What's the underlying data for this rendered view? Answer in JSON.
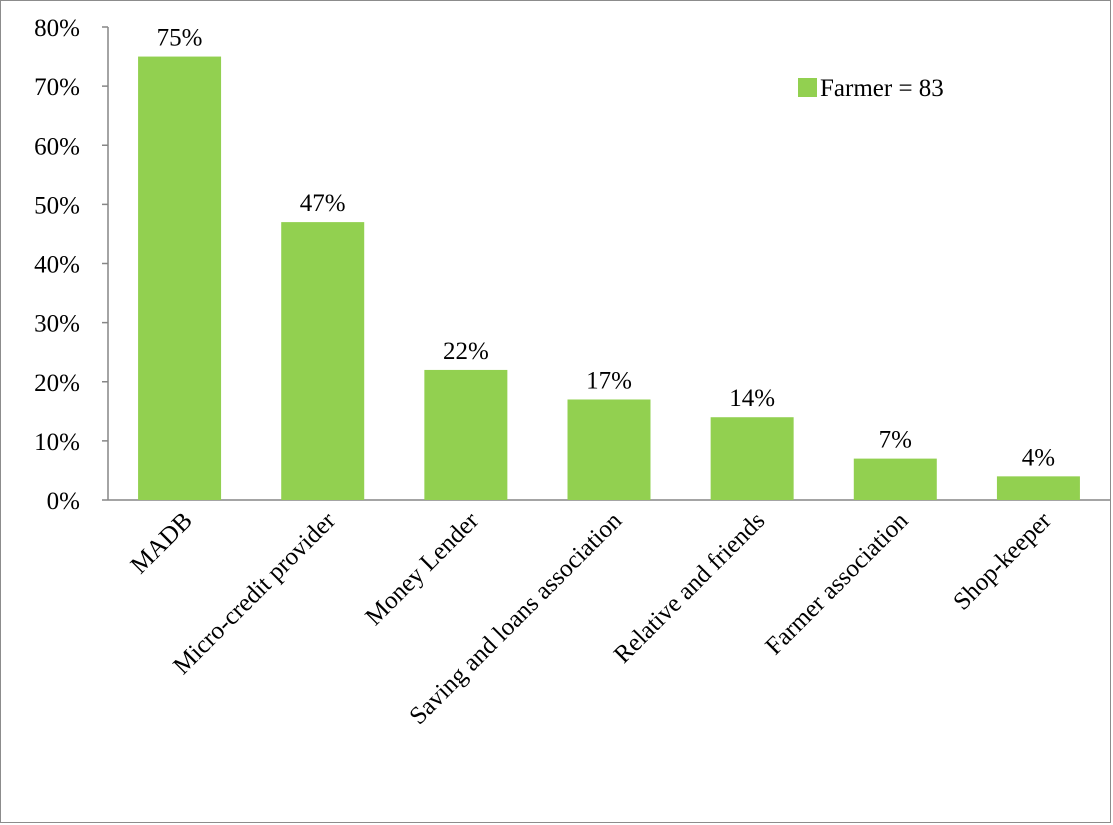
{
  "chart_data": {
    "type": "bar",
    "title": "",
    "xlabel": "",
    "ylabel": "",
    "categories": [
      "MADB",
      "Micro-credit provider",
      "Money Lender",
      "Saving and loans association",
      "Relative and friends",
      "Farmer association",
      "Shop-keeper"
    ],
    "series": [
      {
        "name": "Farmer = 83",
        "values": [
          75,
          47,
          22,
          17,
          14,
          7,
          4
        ],
        "data_labels": [
          "75%",
          "47%",
          "22%",
          "17%",
          "14%",
          "7%",
          "4%"
        ]
      }
    ],
    "ylim": [
      0,
      80
    ],
    "y_ticks": [
      0,
      10,
      20,
      30,
      40,
      50,
      60,
      70,
      80
    ],
    "y_tick_labels": [
      "0%",
      "10%",
      "20%",
      "30%",
      "40%",
      "50%",
      "60%",
      "70%",
      "80%"
    ],
    "grid": false,
    "legend_position": "top-right",
    "colors": {
      "bar": "#92d050",
      "axis": "#868686",
      "frame": "#8c8c8c"
    }
  }
}
